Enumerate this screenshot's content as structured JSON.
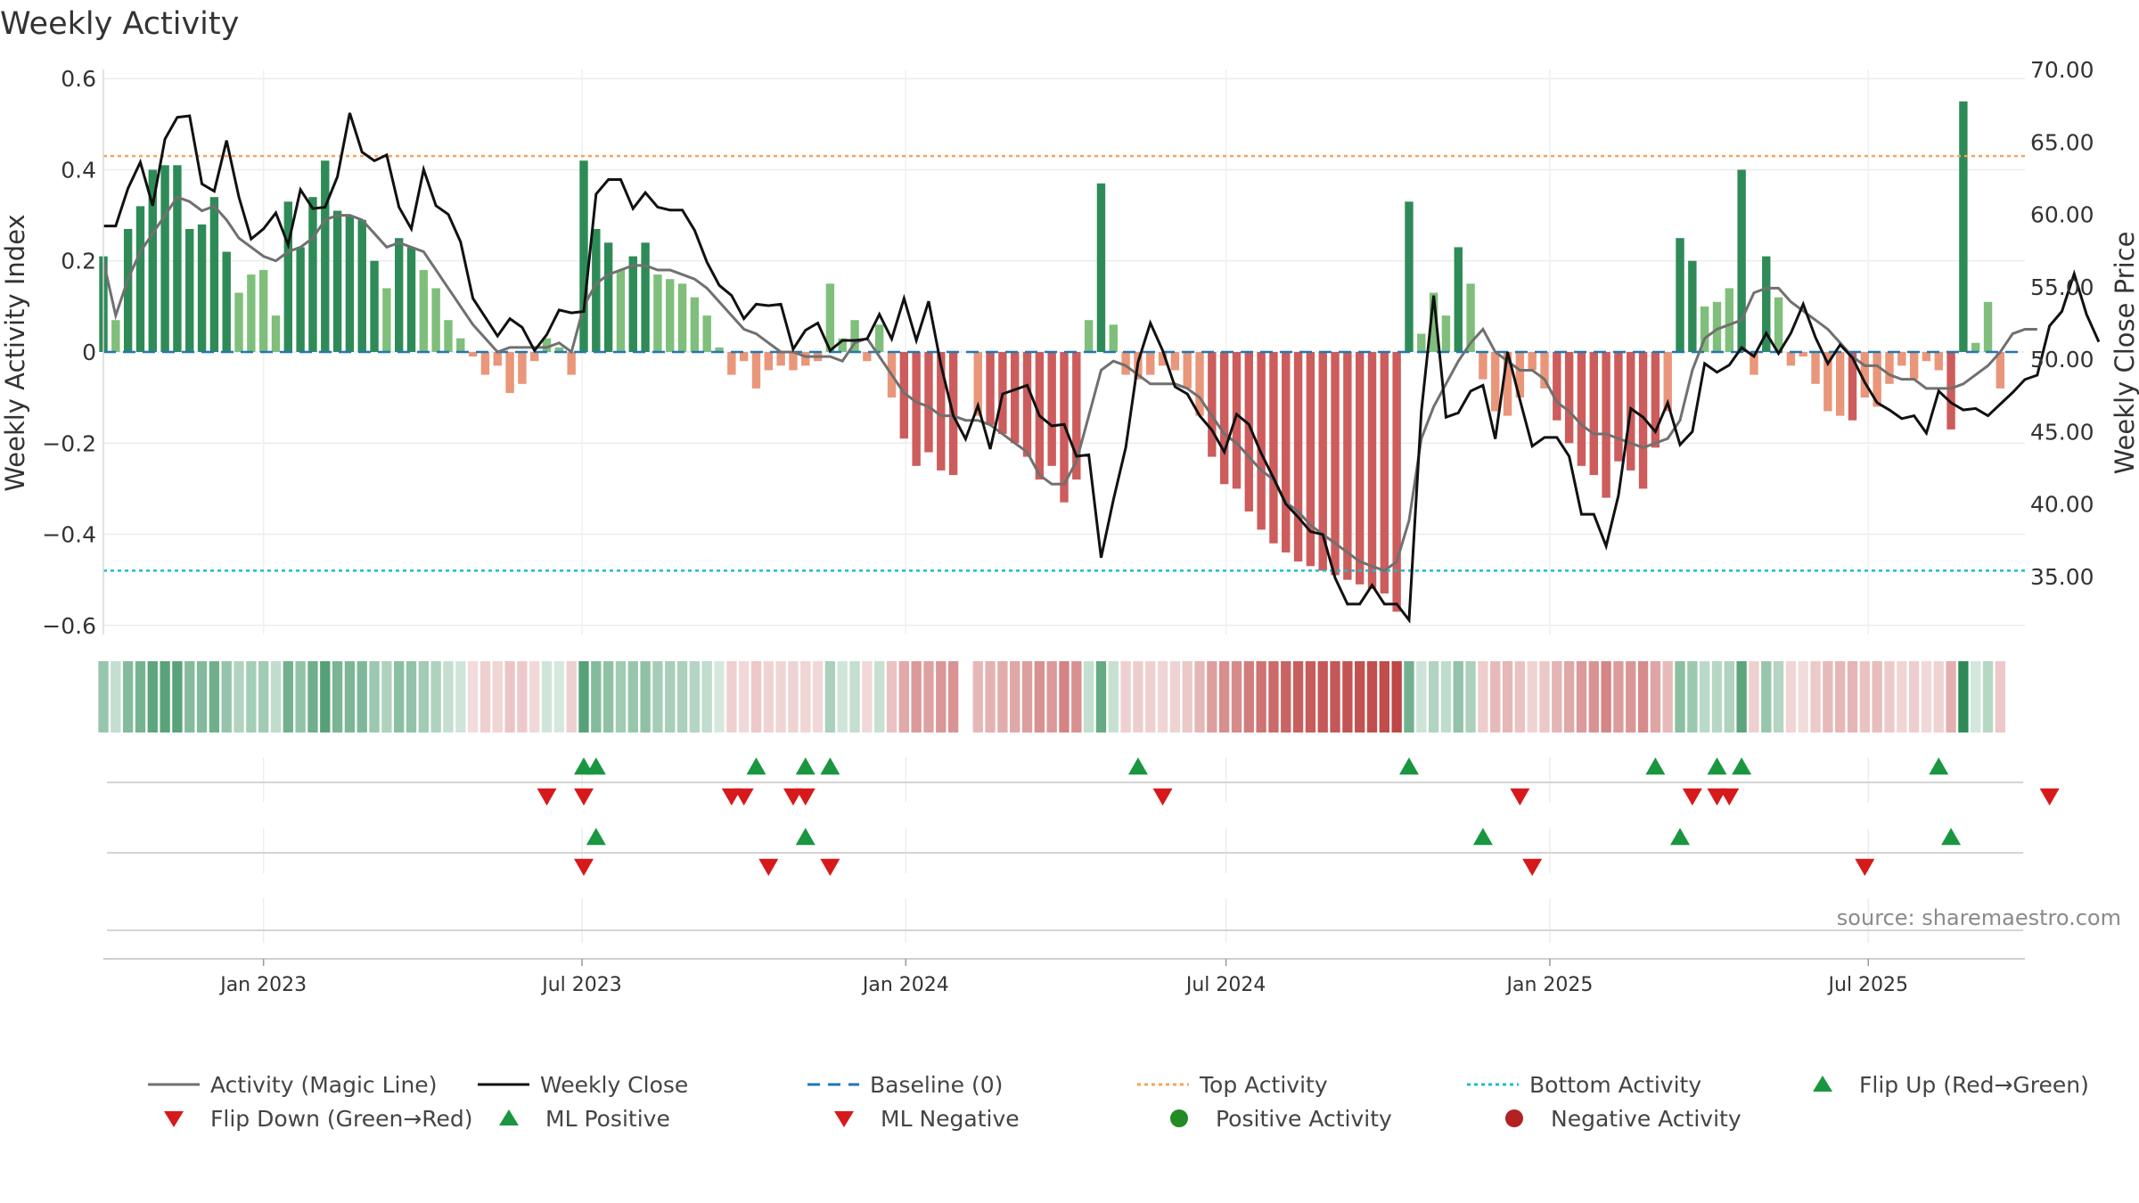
{
  "title": "Weekly Activity",
  "source": "source: sharemaestro.com",
  "chart_data": {
    "type": "bar",
    "title": "Weekly Activity",
    "x_start": "2022-10-02",
    "x_step_days": 7,
    "xlim": [
      "2022-10-02",
      "2025-09-28"
    ],
    "x_ticks": [
      {
        "date": "2023-01-01",
        "label": "Jan 2023"
      },
      {
        "date": "2023-07-01",
        "label": "Jul 2023"
      },
      {
        "date": "2024-01-01",
        "label": "Jan 2024"
      },
      {
        "date": "2024-07-01",
        "label": "Jul 2024"
      },
      {
        "date": "2025-01-01",
        "label": "Jan 2025"
      },
      {
        "date": "2025-07-01",
        "label": "Jul 2025"
      }
    ],
    "y_left": {
      "label": "Weekly Activity Index",
      "range": [
        -0.62,
        0.62
      ],
      "ticks": [
        {
          "v": 0.6,
          "label": "0.6"
        },
        {
          "v": 0.4,
          "label": "0.4"
        },
        {
          "v": 0.2,
          "label": "0.2"
        },
        {
          "v": 0,
          "label": "0"
        },
        {
          "v": -0.2,
          "label": "−0.2"
        },
        {
          "v": -0.4,
          "label": "−0.4"
        },
        {
          "v": -0.6,
          "label": "−0.6"
        }
      ]
    },
    "y_right": {
      "label": "Weekly Close Price",
      "range": [
        31.0,
        70.0
      ],
      "ticks": [
        {
          "v": 70,
          "label": "70.00"
        },
        {
          "v": 65,
          "label": "65.00"
        },
        {
          "v": 60,
          "label": "60.00"
        },
        {
          "v": 55,
          "label": "55.00"
        },
        {
          "v": 50,
          "label": "50.00"
        },
        {
          "v": 45,
          "label": "45.00"
        },
        {
          "v": 40,
          "label": "40.00"
        },
        {
          "v": 35,
          "label": "35.00"
        }
      ]
    },
    "top_activity": 0.43,
    "bottom_activity": -0.48,
    "baseline": 0,
    "activity": [
      0.21,
      0.07,
      0.27,
      0.32,
      0.4,
      0.41,
      0.41,
      0.27,
      0.28,
      0.34,
      0.22,
      0.13,
      0.17,
      0.18,
      0.08,
      0.33,
      0.23,
      0.34,
      0.42,
      0.31,
      0.3,
      0.29,
      0.2,
      0.14,
      0.25,
      0.23,
      0.18,
      0.14,
      0.07,
      0.03,
      -0.01,
      -0.05,
      -0.03,
      -0.09,
      -0.07,
      -0.02,
      0.03,
      0.01,
      -0.05,
      0.42,
      0.27,
      0.24,
      0.18,
      0.21,
      0.24,
      0.17,
      0.16,
      0.15,
      0.12,
      0.08,
      0.01,
      -0.05,
      -0.02,
      -0.08,
      -0.04,
      -0.03,
      -0.04,
      -0.03,
      -0.02,
      0.15,
      0.03,
      0.07,
      -0.02,
      0.06,
      -0.1,
      -0.19,
      -0.25,
      -0.22,
      -0.26,
      -0.27,
      0.0,
      -0.14,
      -0.16,
      -0.18,
      -0.2,
      -0.23,
      -0.28,
      -0.25,
      -0.33,
      -0.28,
      0.07,
      0.37,
      0.06,
      -0.05,
      -0.06,
      -0.05,
      -0.03,
      -0.04,
      -0.08,
      -0.14,
      -0.23,
      -0.29,
      -0.3,
      -0.35,
      -0.39,
      -0.42,
      -0.44,
      -0.46,
      -0.47,
      -0.48,
      -0.49,
      -0.5,
      -0.51,
      -0.52,
      -0.53,
      -0.57,
      0.33,
      0.04,
      0.13,
      0.08,
      0.23,
      0.15,
      -0.06,
      -0.13,
      -0.14,
      -0.1,
      -0.04,
      -0.08,
      -0.15,
      -0.2,
      -0.25,
      -0.27,
      -0.32,
      -0.24,
      -0.26,
      -0.3,
      -0.21,
      -0.13,
      0.25,
      0.2,
      0.1,
      0.11,
      0.14,
      0.4,
      -0.05,
      0.21,
      0.12,
      -0.03,
      -0.01,
      -0.07,
      -0.13,
      -0.14,
      -0.15,
      -0.1,
      -0.12,
      -0.07,
      -0.03,
      -0.06,
      -0.02,
      -0.04,
      -0.17,
      0.55,
      0.02,
      0.11,
      -0.08
    ],
    "weekly_close": [
      59.2,
      59.2,
      61.8,
      63.6,
      60.6,
      65.2,
      66.7,
      66.8,
      62.1,
      61.6,
      65.1,
      61.2,
      58.3,
      59.0,
      60.1,
      57.9,
      61.7,
      60.4,
      60.5,
      62.6,
      67.0,
      64.3,
      63.7,
      64.1,
      60.5,
      59.0,
      63.1,
      60.6,
      60.0,
      58.1,
      54.2,
      52.9,
      51.6,
      52.8,
      52.2,
      50.6,
      51.7,
      53.4,
      53.2,
      53.3,
      61.4,
      62.4,
      62.4,
      60.4,
      61.5,
      60.5,
      60.3,
      60.3,
      58.9,
      56.7,
      55.1,
      54.4,
      52.8,
      53.8,
      53.7,
      53.8,
      50.7,
      52.0,
      52.5,
      50.6,
      51.3,
      51.3,
      51.4,
      53.1,
      51.4,
      54.2,
      51.3,
      54.0,
      49.6,
      46.1,
      44.5,
      46.8,
      43.8,
      47.6,
      47.9,
      48.2,
      46.1,
      45.4,
      45.5,
      43.3,
      43.4,
      36.3,
      40.3,
      43.9,
      49.8,
      52.5,
      50.6,
      48.1,
      47.6,
      46.1,
      45.1,
      43.6,
      46.2,
      45.5,
      43.5,
      41.8,
      40.0,
      39.1,
      38.1,
      37.9,
      34.9,
      33.1,
      33.1,
      34.4,
      33.1,
      33.1,
      32.0,
      46.4,
      54.4,
      46.0,
      46.3,
      47.8,
      48.2,
      44.5,
      50.5,
      47.2,
      44.0,
      44.6,
      44.6,
      43.3,
      39.3,
      39.3,
      37.1,
      40.6,
      46.6,
      46.0,
      45.0,
      47.0,
      44.1,
      45.0,
      49.7,
      49.1,
      49.6,
      50.8,
      50.2,
      51.8,
      50.4,
      51.8,
      53.8,
      51.5,
      49.7,
      51.0,
      50.1,
      48.4,
      47.0,
      46.5,
      45.9,
      46.1,
      44.9,
      47.8,
      47.0,
      46.5,
      46.6,
      46.1,
      46.9,
      47.7,
      48.6,
      48.9,
      52.3,
      53.3,
      55.9,
      53.1,
      51.2
    ],
    "magic_line": [
      0.2,
      0.08,
      0.16,
      0.22,
      0.26,
      0.3,
      0.34,
      0.33,
      0.31,
      0.32,
      0.29,
      0.25,
      0.23,
      0.21,
      0.2,
      0.22,
      0.23,
      0.25,
      0.29,
      0.3,
      0.3,
      0.29,
      0.26,
      0.23,
      0.24,
      0.23,
      0.22,
      0.18,
      0.14,
      0.1,
      0.06,
      0.03,
      0.0,
      0.01,
      0.01,
      0.01,
      0.01,
      0.02,
      0.0,
      0.1,
      0.15,
      0.17,
      0.18,
      0.19,
      0.19,
      0.18,
      0.18,
      0.17,
      0.16,
      0.14,
      0.11,
      0.08,
      0.05,
      0.04,
      0.02,
      0.0,
      0.0,
      -0.01,
      -0.01,
      -0.01,
      -0.02,
      0.02,
      0.03,
      -0.01,
      -0.05,
      -0.09,
      -0.11,
      -0.12,
      -0.14,
      -0.14,
      -0.15,
      -0.15,
      -0.16,
      -0.18,
      -0.2,
      -0.22,
      -0.27,
      -0.29,
      -0.29,
      -0.24,
      -0.14,
      -0.04,
      -0.02,
      -0.03,
      -0.05,
      -0.07,
      -0.07,
      -0.07,
      -0.08,
      -0.1,
      -0.14,
      -0.18,
      -0.2,
      -0.23,
      -0.26,
      -0.28,
      -0.33,
      -0.35,
      -0.38,
      -0.4,
      -0.42,
      -0.44,
      -0.46,
      -0.47,
      -0.48,
      -0.46,
      -0.37,
      -0.19,
      -0.12,
      -0.07,
      -0.02,
      0.02,
      0.05,
      0.0,
      -0.02,
      -0.04,
      -0.04,
      -0.06,
      -0.11,
      -0.13,
      -0.16,
      -0.18,
      -0.18,
      -0.19,
      -0.2,
      -0.21,
      -0.2,
      -0.19,
      -0.15,
      -0.04,
      0.03,
      0.05,
      0.06,
      0.07,
      0.13,
      0.14,
      0.14,
      0.11,
      0.09,
      0.07,
      0.05,
      0.02,
      -0.01,
      -0.03,
      -0.03,
      -0.05,
      -0.06,
      -0.06,
      -0.08,
      -0.08,
      -0.08,
      -0.07,
      -0.05,
      -0.03,
      0.0,
      0.04,
      0.05,
      0.05
    ],
    "flip_up_weeks": [
      39,
      40,
      53,
      57,
      59,
      84,
      106,
      126,
      131,
      133,
      149
    ],
    "flip_down_weeks": [
      36,
      39,
      51,
      52,
      56,
      57,
      86,
      115,
      129,
      131,
      132,
      158
    ],
    "ml_positive_weeks": [
      40,
      57,
      112,
      128,
      150
    ],
    "ml_negative_weeks": [
      39,
      54,
      59,
      116,
      143
    ],
    "legend": [
      {
        "key": "magic",
        "label": "Activity (Magic Line)"
      },
      {
        "key": "close",
        "label": "Weekly Close"
      },
      {
        "key": "baseline",
        "label": "Baseline (0)"
      },
      {
        "key": "top",
        "label": "Top Activity"
      },
      {
        "key": "bottom",
        "label": "Bottom Activity"
      },
      {
        "key": "flipup",
        "label": "Flip Up (Red→Green)"
      },
      {
        "key": "flipdown",
        "label": "Flip Down (Green→Red)"
      },
      {
        "key": "mlpos",
        "label": "ML Positive"
      },
      {
        "key": "mlneg",
        "label": "ML Negative"
      },
      {
        "key": "pos",
        "label": "Positive Activity"
      },
      {
        "key": "neg",
        "label": "Negative Activity"
      }
    ]
  },
  "colors": {
    "pos_strong": "#2e8b57",
    "pos_light": "#7fbf7b",
    "neg_strong": "#cd5c5c",
    "neg_light": "#e9967a",
    "magic_line": "#707070",
    "close_line": "#111111",
    "baseline": "#1f77b4",
    "top_line": "#f4a460",
    "bottom_line": "#17becf",
    "flip_up": "#1a9641",
    "flip_down": "#d7191c",
    "pos_dot": "#228b22",
    "neg_dot": "#b22222"
  }
}
